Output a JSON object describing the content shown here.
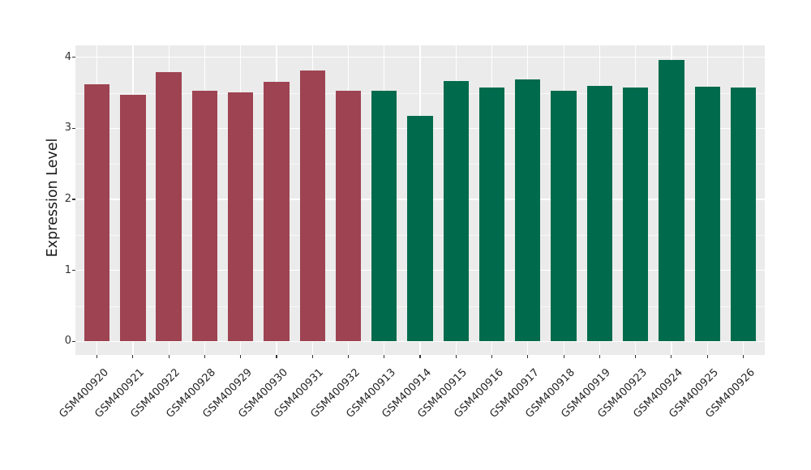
{
  "chart_data": {
    "type": "bar",
    "title": "",
    "xlabel": "",
    "ylabel": "Expression Level",
    "categories": [
      "GSM400920",
      "GSM400921",
      "GSM400922",
      "GSM400928",
      "GSM400929",
      "GSM400930",
      "GSM400931",
      "GSM400932",
      "GSM400913",
      "GSM400914",
      "GSM400915",
      "GSM400916",
      "GSM400917",
      "GSM400918",
      "GSM400919",
      "GSM400923",
      "GSM400924",
      "GSM400925",
      "GSM400926"
    ],
    "values": [
      3.62,
      3.47,
      3.79,
      3.53,
      3.51,
      3.65,
      3.82,
      3.53,
      3.53,
      3.18,
      3.67,
      3.57,
      3.69,
      3.53,
      3.6,
      3.57,
      3.96,
      3.59,
      3.57
    ],
    "bar_colors": [
      "#9E4352",
      "#9E4352",
      "#9E4352",
      "#9E4352",
      "#9E4352",
      "#9E4352",
      "#9E4352",
      "#9E4352",
      "#006B4C",
      "#006B4C",
      "#006B4C",
      "#006B4C",
      "#006B4C",
      "#006B4C",
      "#006B4C",
      "#006B4C",
      "#006B4C",
      "#006B4C",
      "#006B4C"
    ],
    "yticks": [
      "0",
      "1",
      "2",
      "3",
      "4"
    ],
    "ylim": [
      -0.19,
      4.17
    ],
    "grid": "major-and-minor",
    "legend_position": "none",
    "x_label_angle_deg": 45,
    "palette": {
      "group1_red": "#9E4352",
      "group2_green": "#006B4C",
      "panel_background": "#EBEBEB",
      "grid_color": "#FFFFFF",
      "axis_text_color": "#333333"
    }
  }
}
